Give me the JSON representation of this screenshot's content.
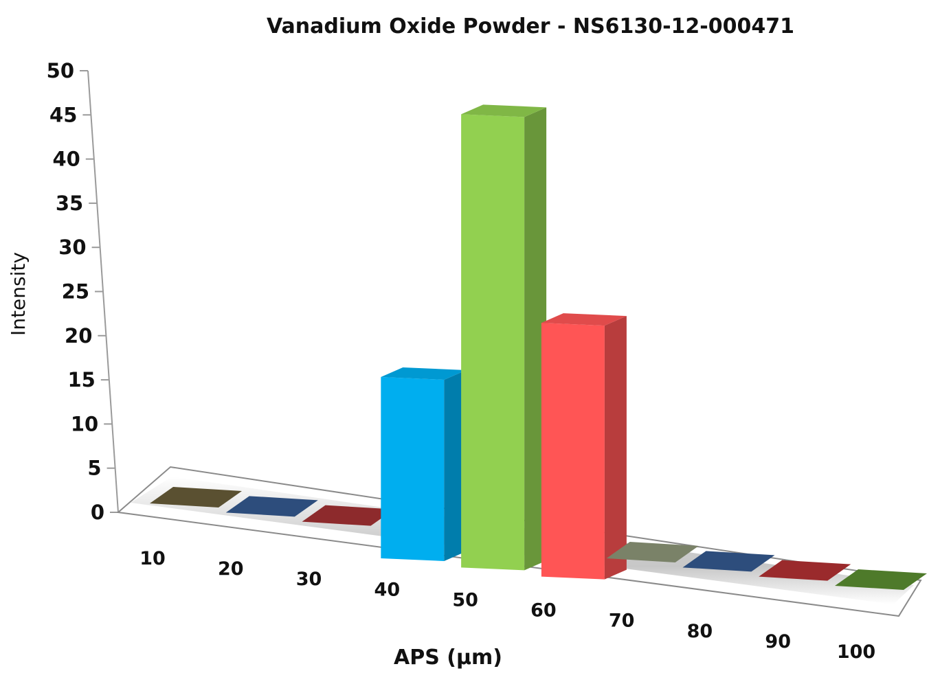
{
  "chart_data": {
    "type": "bar",
    "style": "3d-column",
    "title": "Vanadium Oxide Powder - NS6130-12-000471",
    "xlabel": "APS (µm)",
    "ylabel": "Intensity",
    "categories": [
      "10",
      "20",
      "30",
      "40",
      "50",
      "60",
      "70",
      "80",
      "90",
      "100"
    ],
    "values": [
      0,
      0,
      0,
      20,
      50,
      28,
      0,
      0,
      0,
      0
    ],
    "bar_colors": [
      "#5a5031",
      "#2d4d7c",
      "#8d2a2c",
      "#00aeef",
      "#92d050",
      "#ff5555",
      "#7a8268",
      "#2d4d7c",
      "#9a2a2c",
      "#4e7a2a"
    ],
    "ylim": [
      0,
      50
    ],
    "yticks": [
      "0",
      "5",
      "10",
      "15",
      "20",
      "25",
      "30",
      "35",
      "40",
      "45",
      "50"
    ],
    "grid": false,
    "legend": "none"
  }
}
